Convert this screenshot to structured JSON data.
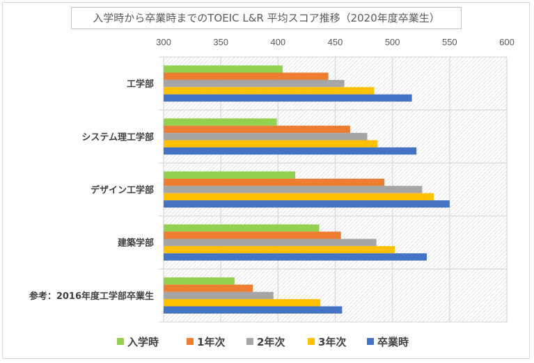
{
  "chart_data": {
    "type": "bar",
    "orientation": "horizontal",
    "title": "入学時から卒業時までのTOEIC L&R 平均スコア推移（2020年度卒業生）",
    "categories": [
      "工学部",
      "システム理工学部",
      "デザイン工学部",
      "建築学部",
      "参考：2016年度工学部卒業生"
    ],
    "series": [
      {
        "name": "入学時",
        "color": "#92d050",
        "values": [
          404,
          399,
          415,
          436,
          362
        ]
      },
      {
        "name": "1年次",
        "color": "#ed7d31",
        "values": [
          444,
          463,
          493,
          455,
          378
        ]
      },
      {
        "name": "2年次",
        "color": "#a5a5a5",
        "values": [
          458,
          478,
          526,
          486,
          396
        ]
      },
      {
        "name": "3年次",
        "color": "#ffc000",
        "values": [
          484,
          487,
          536,
          502,
          437
        ]
      },
      {
        "name": "卒業時",
        "color": "#4472c4",
        "values": [
          517,
          521,
          550,
          530,
          456
        ]
      }
    ],
    "xlim": [
      300,
      600
    ],
    "xticks": [
      "300",
      "350",
      "400",
      "450",
      "500",
      "550",
      "600"
    ],
    "xaxis_position": "top",
    "grid": true,
    "plot_background": "diagonal hatch",
    "legend": "bottom",
    "xlabel": "",
    "ylabel": ""
  }
}
